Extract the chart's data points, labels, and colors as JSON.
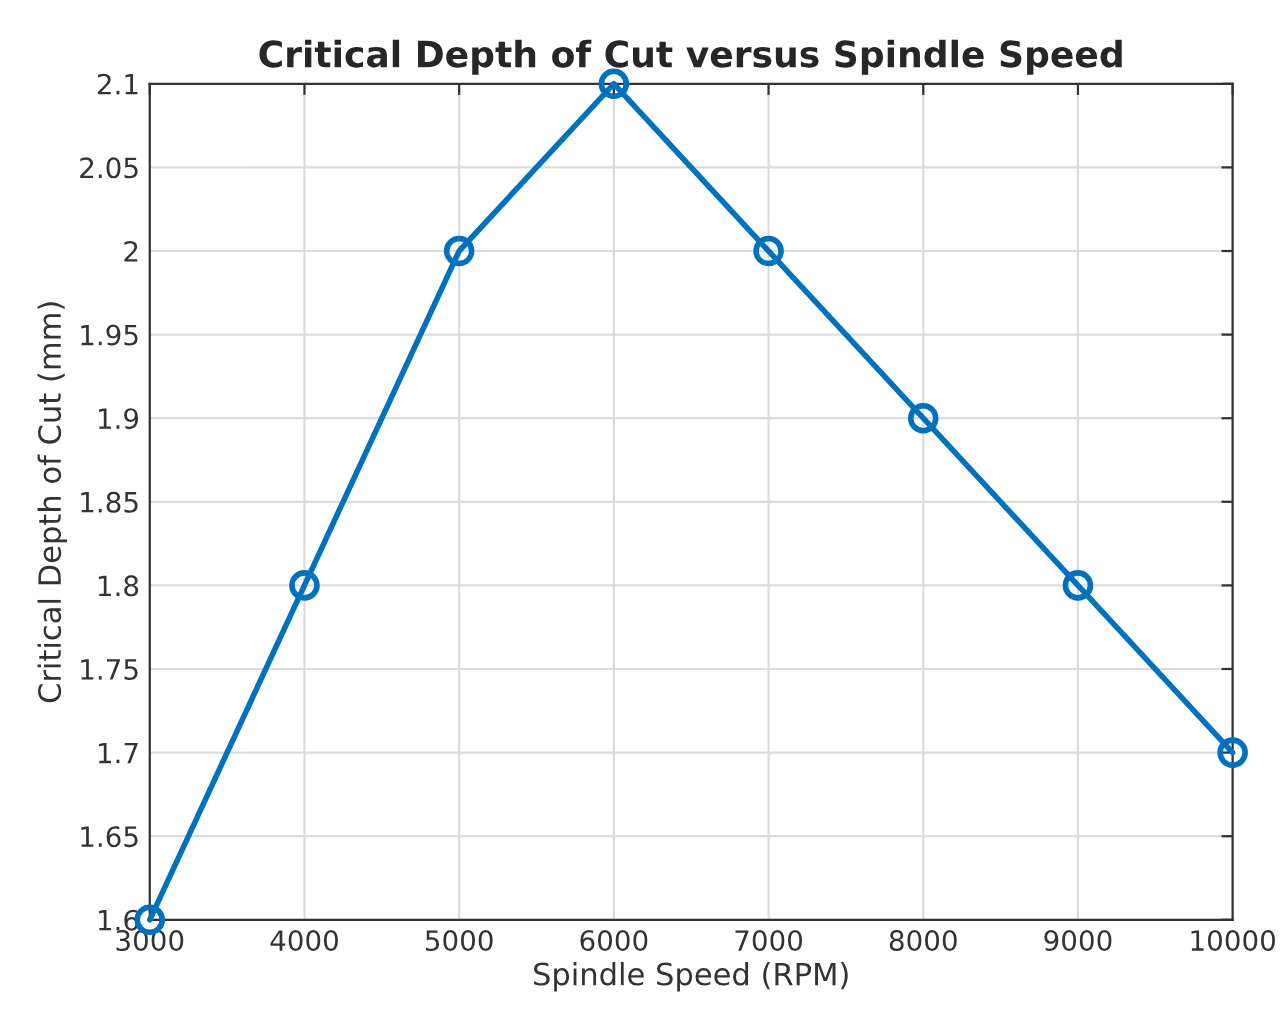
{
  "chart_data": {
    "type": "line",
    "title": "Critical Depth of Cut versus Spindle Speed",
    "xlabel": "Spindle Speed (RPM)",
    "ylabel": "Critical Depth of Cut (mm)",
    "x": [
      3000,
      4000,
      5000,
      6000,
      7000,
      8000,
      9000,
      10000
    ],
    "series": [
      {
        "color": "#0072bd",
        "values": [
          1.6,
          1.8,
          2.0,
          2.1,
          2.0,
          1.9,
          1.8,
          1.7
        ]
      }
    ],
    "xlim": [
      3000,
      10000
    ],
    "xticks": [
      3000,
      4000,
      5000,
      6000,
      7000,
      8000,
      9000,
      10000
    ],
    "ylim": [
      1.6,
      2.1
    ],
    "yticks": [
      1.6,
      1.65,
      1.7,
      1.75,
      1.8,
      1.85,
      1.9,
      1.95,
      2,
      2.05,
      2.1
    ],
    "grid": true,
    "marker": "circle",
    "line_style": "solid"
  }
}
